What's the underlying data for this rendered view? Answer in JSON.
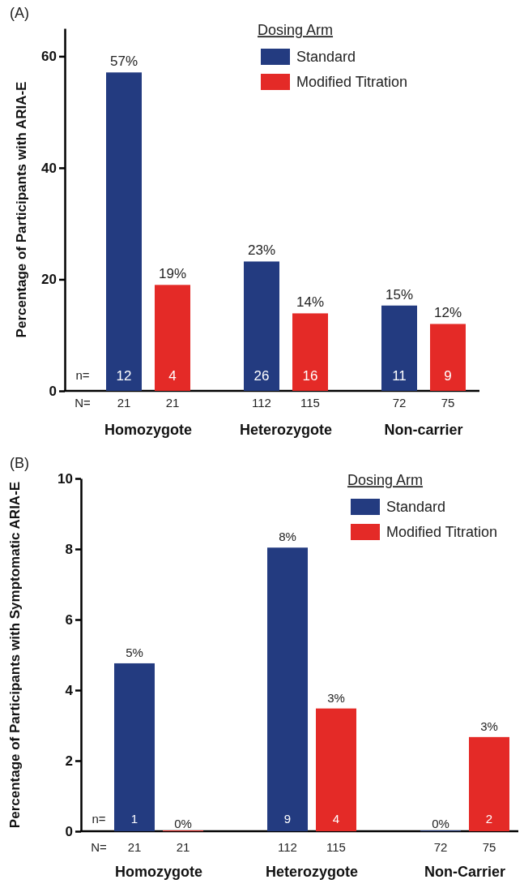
{
  "chart_data": [
    {
      "type": "bar",
      "categories": [
        "Homozygote",
        "Heterozygote",
        "Non-carrier"
      ],
      "ylabel": "Percentage of Participants with ARIA-E",
      "legend_title": "Dosing Arm",
      "legend": "top right",
      "grid": false,
      "ylim": [
        0,
        65
      ],
      "yticks": [
        0,
        20,
        40,
        60
      ],
      "series": [
        {
          "name": "Standard",
          "color": "#233b80",
          "values": [
            57.1,
            23.2,
            15.3
          ],
          "value_labels": [
            "57%",
            "23%",
            "15%"
          ]
        },
        {
          "name": "Modified Titration",
          "color": "#e42a27",
          "values": [
            19.0,
            13.9,
            12.0
          ],
          "value_labels": [
            "19%",
            "14%",
            "12%"
          ]
        }
      ],
      "annotations": [
        "(A)",
        "n=",
        "N=",
        "12",
        "4",
        "26",
        "16",
        "11",
        "9",
        "21",
        "21",
        "112",
        "115",
        "72",
        "75"
      ]
    },
    {
      "type": "bar",
      "categories": [
        "Homozygote",
        "Heterozygote",
        "Non-Carrier"
      ],
      "ylabel": "Percentage of Participants with Symptomatic ARIA-E",
      "legend_title": "Dosing Arm",
      "legend": "top right",
      "grid": false,
      "ylim": [
        0,
        10
      ],
      "yticks": [
        0,
        2,
        4,
        6,
        8,
        10
      ],
      "series": [
        {
          "name": "Standard",
          "color": "#233b80",
          "values": [
            4.76,
            8.04,
            0
          ],
          "value_labels": [
            "5%",
            "8%",
            "0%"
          ]
        },
        {
          "name": "Modified Titration",
          "color": "#e42a27",
          "values": [
            0,
            3.48,
            2.67
          ],
          "value_labels": [
            "0%",
            "3%",
            "3%"
          ]
        }
      ],
      "annotations": [
        "(B)",
        "n=",
        "N=",
        "1",
        "9",
        "4",
        "2",
        "21",
        "21",
        "112",
        "115",
        "72",
        "75"
      ]
    }
  ]
}
